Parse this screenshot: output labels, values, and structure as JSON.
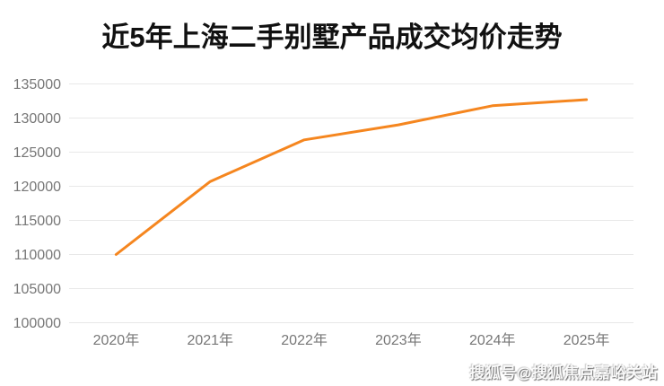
{
  "chart_data": {
    "type": "line",
    "title": "近5年上海二手别墅产品成交均价走势",
    "categories": [
      "2020年",
      "2021年",
      "2022年",
      "2023年",
      "2024年",
      "2025年"
    ],
    "series": [
      {
        "name": "成交均价",
        "values": [
          110000,
          120700,
          126800,
          129000,
          131800,
          132700
        ]
      }
    ],
    "xlabel": "",
    "ylabel": "",
    "ylim": [
      100000,
      135000
    ],
    "yticks": [
      100000,
      105000,
      110000,
      115000,
      120000,
      125000,
      130000,
      135000
    ],
    "grid": true,
    "legend_position": "none",
    "line_color": "#F5861F",
    "axis_label_color": "#777777",
    "grid_color": "#e8e8e8",
    "title_color": "#111111",
    "background_color": "#ffffff"
  },
  "watermark": {
    "text": "搜狐号@搜狐焦点嘉峪关站"
  }
}
